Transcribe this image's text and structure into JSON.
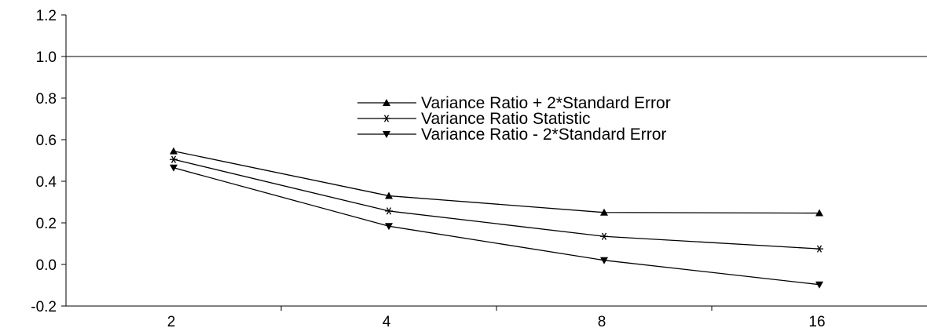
{
  "chart_data": {
    "type": "line",
    "categories": [
      "2",
      "4",
      "8",
      "16"
    ],
    "ylim": [
      -0.2,
      1.2
    ],
    "yticks": [
      -0.2,
      0.0,
      0.2,
      0.4,
      0.6,
      0.8,
      1.0,
      1.2
    ],
    "ytick_labels": [
      "-0.2",
      "0.0",
      "0.2",
      "0.4",
      "0.6",
      "0.8",
      "1.0",
      "1.2"
    ],
    "reference_line": 1.0,
    "grid": false,
    "legend_position": "top-center",
    "line_color": "#000000",
    "series": [
      {
        "name": "Variance Ratio + 2*Standard Error",
        "marker": "triangle-up",
        "values": [
          0.545,
          0.33,
          0.25,
          0.247
        ]
      },
      {
        "name": "Variance Ratio Statistic",
        "marker": "asterisk",
        "values": [
          0.505,
          0.257,
          0.135,
          0.075
        ]
      },
      {
        "name": "Variance Ratio - 2*Standard Error",
        "marker": "triangle-down",
        "values": [
          0.465,
          0.184,
          0.02,
          -0.097
        ]
      }
    ]
  }
}
